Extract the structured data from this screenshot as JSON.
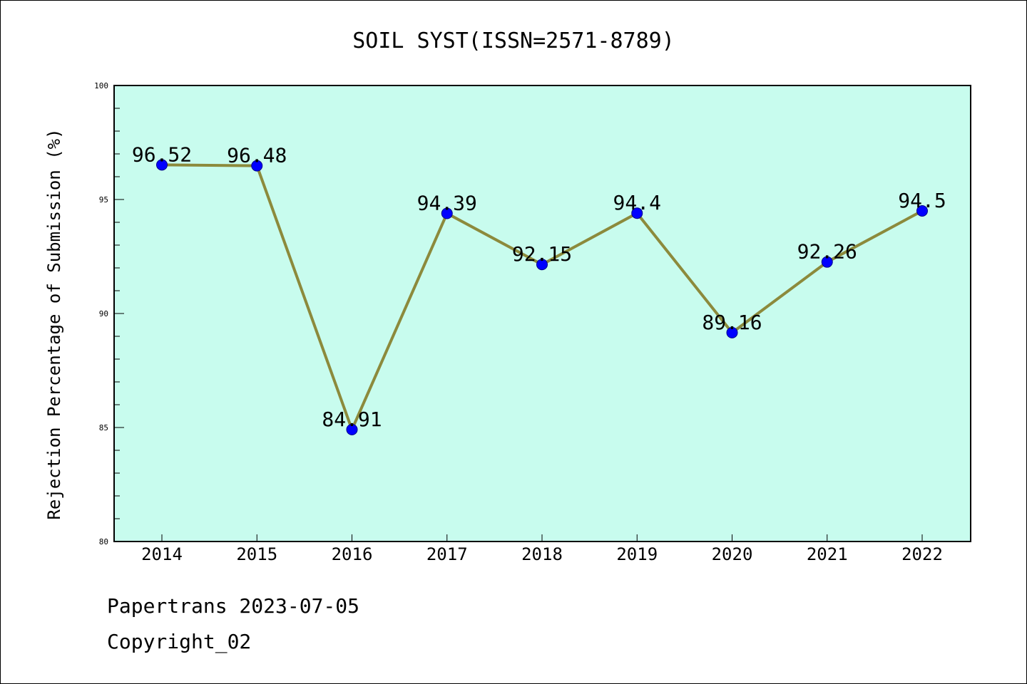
{
  "chart_data": {
    "type": "line",
    "title": "SOIL SYST(ISSN=2571-8789)",
    "xlabel": "",
    "ylabel": "Rejection Percentage of Submission (%)",
    "categories": [
      "2014",
      "2015",
      "2016",
      "2017",
      "2018",
      "2019",
      "2020",
      "2021",
      "2022"
    ],
    "series": [
      {
        "values": [
          96.52,
          96.48,
          84.91,
          94.39,
          92.15,
          94.4,
          89.16,
          92.26,
          94.5
        ],
        "labels": [
          "96.52",
          "96.48",
          "84.91",
          "94.39",
          "92.15",
          "94.4",
          "89.16",
          "92.26",
          "94.5"
        ]
      }
    ],
    "ylim": [
      80,
      100
    ],
    "yticks": [
      "80",
      "85",
      "90",
      "95",
      "100"
    ],
    "grid": false,
    "colors": {
      "plot_background": "#c8fcee",
      "line": "#8c8a3c",
      "marker": "#0000ff"
    }
  },
  "footer": {
    "line1": "Papertrans 2023-07-05",
    "line2": "Copyright_02"
  }
}
